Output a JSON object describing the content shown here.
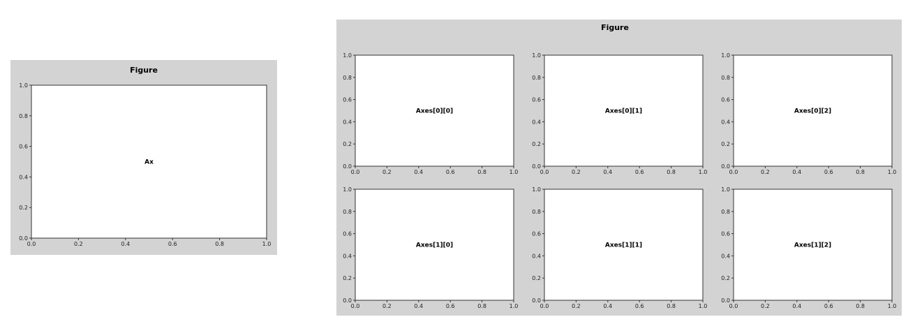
{
  "figures": [
    {
      "title": "Figure",
      "axes": [
        {
          "label": "Ax",
          "xticks": [
            "0.0",
            "0.2",
            "0.4",
            "0.6",
            "0.8",
            "1.0"
          ],
          "yticks": [
            "0.0",
            "0.2",
            "0.4",
            "0.6",
            "0.8",
            "1.0"
          ]
        }
      ]
    },
    {
      "title": "Figure",
      "axes": [
        {
          "label": "Axes[0][0]",
          "xticks": [
            "0.0",
            "0.2",
            "0.4",
            "0.6",
            "0.8",
            "1.0"
          ],
          "yticks": [
            "0.0",
            "0.2",
            "0.4",
            "0.6",
            "0.8",
            "1.0"
          ]
        },
        {
          "label": "Axes[0][1]",
          "xticks": [
            "0.0",
            "0.2",
            "0.4",
            "0.6",
            "0.8",
            "1.0"
          ],
          "yticks": [
            "0.0",
            "0.2",
            "0.4",
            "0.6",
            "0.8",
            "1.0"
          ]
        },
        {
          "label": "Axes[0][2]",
          "xticks": [
            "0.0",
            "0.2",
            "0.4",
            "0.6",
            "0.8",
            "1.0"
          ],
          "yticks": [
            "0.0",
            "0.2",
            "0.4",
            "0.6",
            "0.8",
            "1.0"
          ]
        },
        {
          "label": "Axes[1][0]",
          "xticks": [
            "0.0",
            "0.2",
            "0.4",
            "0.6",
            "0.8",
            "1.0"
          ],
          "yticks": [
            "0.0",
            "0.2",
            "0.4",
            "0.6",
            "0.8",
            "1.0"
          ]
        },
        {
          "label": "Axes[1][1]",
          "xticks": [
            "0.0",
            "0.2",
            "0.4",
            "0.6",
            "0.8",
            "1.0"
          ],
          "yticks": [
            "0.0",
            "0.2",
            "0.4",
            "0.6",
            "0.8",
            "1.0"
          ]
        },
        {
          "label": "Axes[1][2]",
          "xticks": [
            "0.0",
            "0.2",
            "0.4",
            "0.6",
            "0.8",
            "1.0"
          ],
          "yticks": [
            "0.0",
            "0.2",
            "0.4",
            "0.6",
            "0.8",
            "1.0"
          ]
        }
      ]
    }
  ]
}
